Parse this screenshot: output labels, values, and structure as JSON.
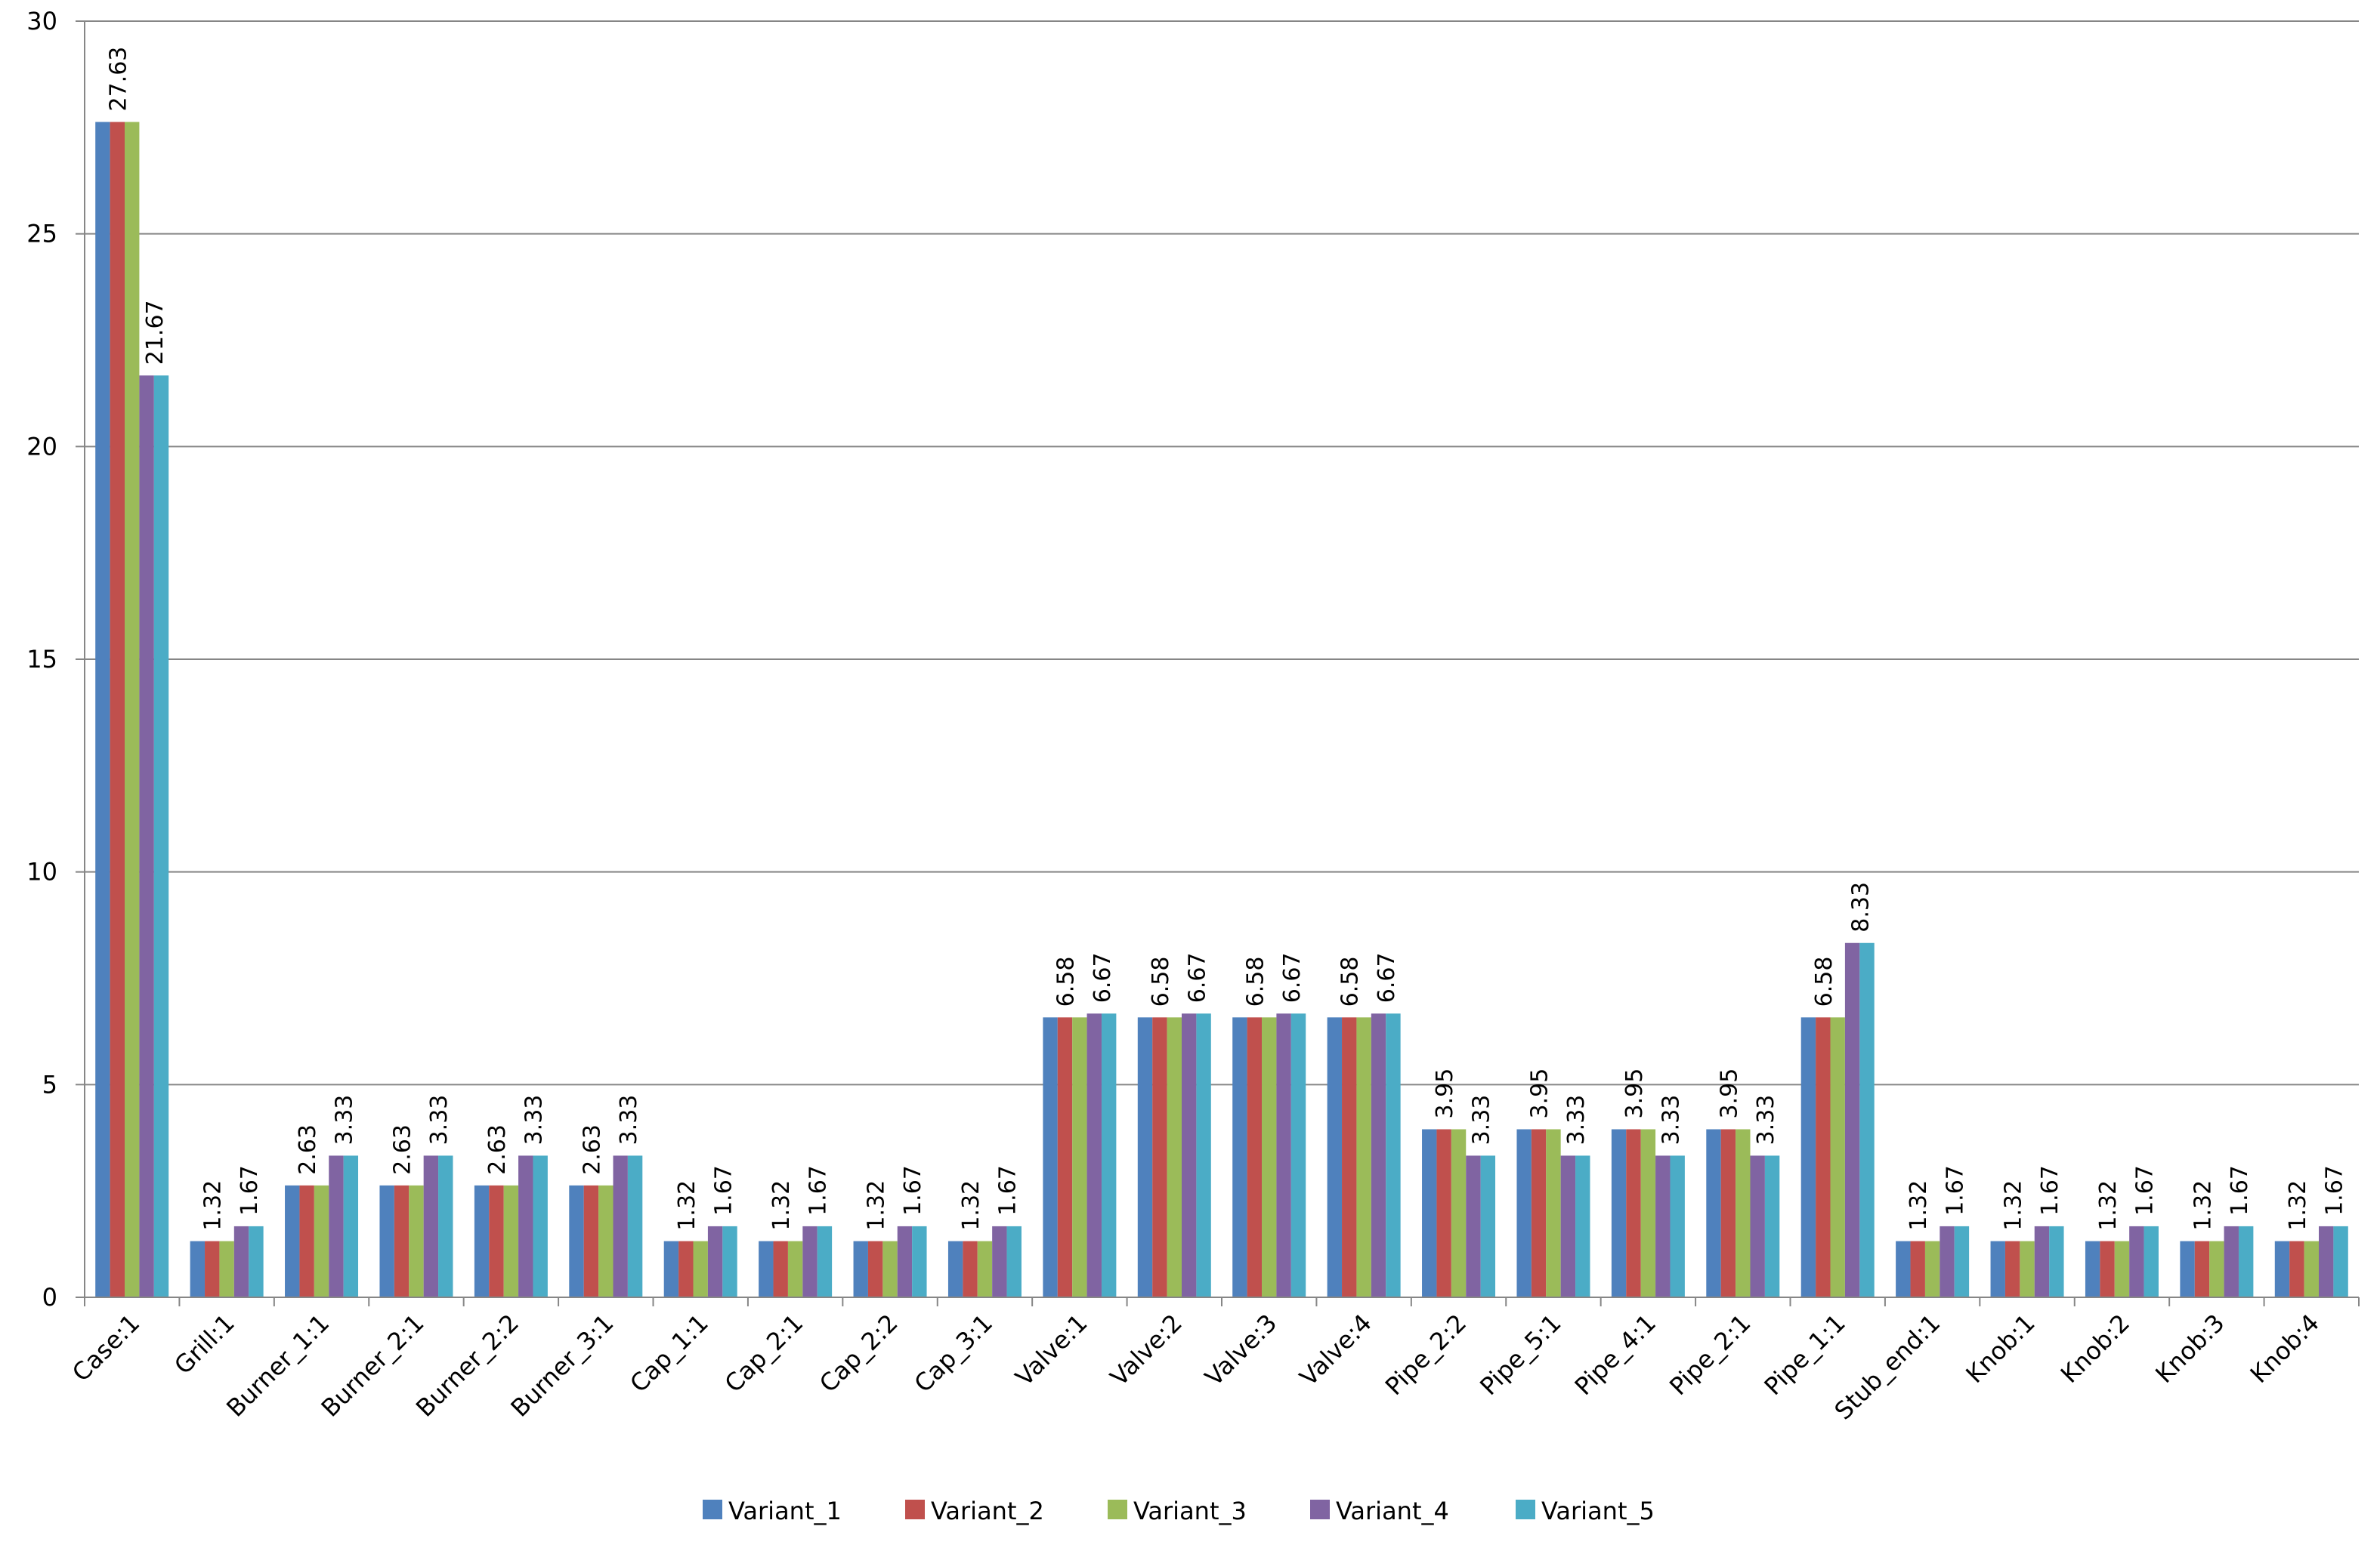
{
  "chart_data": {
    "type": "bar",
    "title": "",
    "xlabel": "",
    "ylabel": "",
    "ylim": [
      0,
      30
    ],
    "yticks": [
      "0",
      "5",
      "10",
      "15",
      "20",
      "25",
      "30"
    ],
    "grid": "horizontal",
    "legend_position": "bottom",
    "categories": [
      "Case:1",
      "Grill:1",
      "Burner_1:1",
      "Burner_2:1",
      "Burner_2:2",
      "Burner_3:1",
      "Cap_1:1",
      "Cap_2:1",
      "Cap_2:2",
      "Cap_3:1",
      "Valve:1",
      "Valve:2",
      "Valve:3",
      "Valve:4",
      "Pipe_2:2",
      "Pipe_5:1",
      "Pipe_4:1",
      "Pipe_2:1",
      "Pipe_1:1",
      "Stub_end:1",
      "Knob:1",
      "Knob:2",
      "Knob:3",
      "Knob:4"
    ],
    "series": [
      {
        "name": "Variant_1",
        "color": "#4F81BD",
        "values": [
          27.63,
          1.32,
          2.63,
          2.63,
          2.63,
          2.63,
          1.32,
          1.32,
          1.32,
          1.32,
          6.58,
          6.58,
          6.58,
          6.58,
          3.95,
          3.95,
          3.95,
          3.95,
          6.58,
          1.32,
          1.32,
          1.32,
          1.32,
          1.32
        ]
      },
      {
        "name": "Variant_2",
        "color": "#C0504D",
        "values": [
          27.63,
          1.32,
          2.63,
          2.63,
          2.63,
          2.63,
          1.32,
          1.32,
          1.32,
          1.32,
          6.58,
          6.58,
          6.58,
          6.58,
          3.95,
          3.95,
          3.95,
          3.95,
          6.58,
          1.32,
          1.32,
          1.32,
          1.32,
          1.32
        ]
      },
      {
        "name": "Variant_3",
        "color": "#9BBB59",
        "values": [
          27.63,
          1.32,
          2.63,
          2.63,
          2.63,
          2.63,
          1.32,
          1.32,
          1.32,
          1.32,
          6.58,
          6.58,
          6.58,
          6.58,
          3.95,
          3.95,
          3.95,
          3.95,
          6.58,
          1.32,
          1.32,
          1.32,
          1.32,
          1.32
        ]
      },
      {
        "name": "Variant_4",
        "color": "#8064A2",
        "values": [
          21.67,
          1.67,
          3.33,
          3.33,
          3.33,
          3.33,
          1.67,
          1.67,
          1.67,
          1.67,
          6.67,
          6.67,
          6.67,
          6.67,
          3.33,
          3.33,
          3.33,
          3.33,
          8.33,
          1.67,
          1.67,
          1.67,
          1.67,
          1.67
        ]
      },
      {
        "name": "Variant_5",
        "color": "#4BACC6",
        "values": [
          21.67,
          1.67,
          3.33,
          3.33,
          3.33,
          3.33,
          1.67,
          1.67,
          1.67,
          1.67,
          6.67,
          6.67,
          6.67,
          6.67,
          3.33,
          3.33,
          3.33,
          3.33,
          8.33,
          1.67,
          1.67,
          1.67,
          1.67,
          1.67
        ]
      }
    ],
    "data_labels": [
      {
        "category": "Case:1",
        "texts": [
          "27.63",
          "21.67"
        ]
      },
      {
        "category": "Grill:1",
        "texts": [
          "1.32",
          "1.67"
        ]
      },
      {
        "category": "Burner_1:1",
        "texts": [
          "2.63",
          "3.33"
        ]
      },
      {
        "category": "Burner_2:1",
        "texts": [
          "2.63",
          "3.33"
        ]
      },
      {
        "category": "Burner_2:2",
        "texts": [
          "2.63",
          "3.33"
        ]
      },
      {
        "category": "Burner_3:1",
        "texts": [
          "2.63",
          "3.33"
        ]
      },
      {
        "category": "Cap_1:1",
        "texts": [
          "1.32",
          "1.67"
        ]
      },
      {
        "category": "Cap_2:1",
        "texts": [
          "1.32",
          "1.67"
        ]
      },
      {
        "category": "Cap_2:2",
        "texts": [
          "1.32",
          "1.67"
        ]
      },
      {
        "category": "Cap_3:1",
        "texts": [
          "1.32",
          "1.67"
        ]
      },
      {
        "category": "Valve:1",
        "texts": [
          "6.58",
          "6.67"
        ]
      },
      {
        "category": "Valve:2",
        "texts": [
          "6.58",
          "6.67"
        ]
      },
      {
        "category": "Valve:3",
        "texts": [
          "6.58",
          "6.67"
        ]
      },
      {
        "category": "Valve:4",
        "texts": [
          "6.58",
          "6.67"
        ]
      },
      {
        "category": "Pipe_2:2",
        "texts": [
          "3.95",
          "3.33"
        ]
      },
      {
        "category": "Pipe_5:1",
        "texts": [
          "3.95",
          "3.33"
        ]
      },
      {
        "category": "Pipe_4:1",
        "texts": [
          "3.95",
          "3.33"
        ]
      },
      {
        "category": "Pipe_2:1",
        "texts": [
          "3.95",
          "3.33"
        ]
      },
      {
        "category": "Pipe_1:1",
        "texts": [
          "6.58",
          "8.33"
        ]
      },
      {
        "category": "Stub_end:1",
        "texts": [
          "1.32",
          "1.67"
        ]
      },
      {
        "category": "Knob:1",
        "texts": [
          "1.32",
          "1.67"
        ]
      },
      {
        "category": "Knob:2",
        "texts": [
          "1.32",
          "1.67"
        ]
      },
      {
        "category": "Knob:3",
        "texts": [
          "1.32",
          "1.67"
        ]
      },
      {
        "category": "Knob:4",
        "texts": [
          "1.32",
          "1.67"
        ]
      }
    ]
  }
}
